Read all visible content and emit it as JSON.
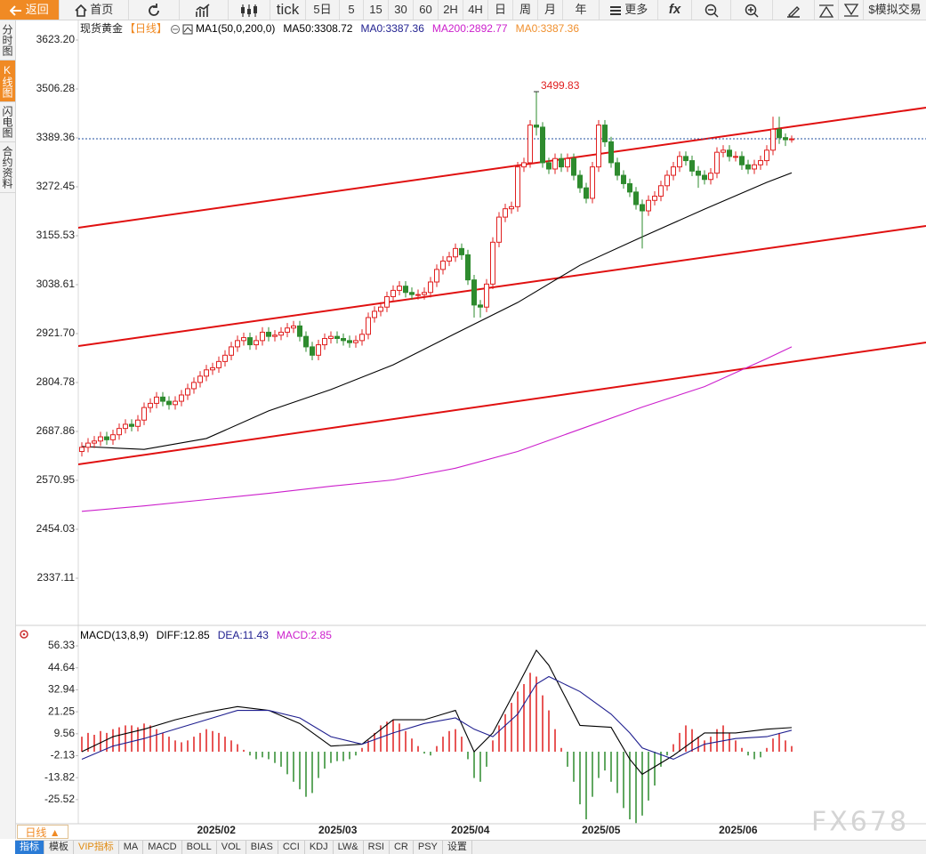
{
  "toolbar": {
    "back": "返回",
    "home": "首页",
    "periods": [
      "tick",
      "5日",
      "5",
      "15",
      "30",
      "60",
      "2H",
      "4H",
      "日",
      "周",
      "月",
      "年"
    ],
    "more": "更多",
    "formula": "fx",
    "trade": "$模拟交易"
  },
  "sidebar": [
    "分时图",
    "K线图",
    "闪电图",
    "合约资料"
  ],
  "chart_data": [
    {
      "type": "candlestick",
      "title": "现货黄金",
      "period": "【日线】",
      "legend": [
        {
          "text": "MA1(50,0,200,0)",
          "color": "#000000"
        },
        {
          "text": "MA50:3308.72",
          "color": "#000000"
        },
        {
          "text": "MA0:3387.36",
          "color": "#1f1f8f"
        },
        {
          "text": "MA200:2892.77",
          "color": "#cc1fcc"
        },
        {
          "text": "MA0:3387.36",
          "color": "#f0902e"
        }
      ],
      "open": [
        2640,
        2650,
        2660,
        2665,
        2675,
        2668,
        2680,
        2695,
        2705,
        2700,
        2715,
        2745,
        2755,
        2770,
        2760,
        2752,
        2760,
        2775,
        2790,
        2805,
        2820,
        2835,
        2840,
        2855,
        2870,
        2890,
        2905,
        2912,
        2895,
        2905,
        2925,
        2915,
        2918,
        2925,
        2935,
        2940,
        2915,
        2890,
        2870,
        2895,
        2910,
        2915,
        2910,
        2905,
        2900,
        2905,
        2920,
        2960,
        2975,
        2985,
        3010,
        3025,
        3035,
        3020,
        3015,
        3015,
        3020,
        3045,
        3075,
        3095,
        3105,
        3125,
        3110,
        3050,
        2990,
        2985,
        3040,
        3140,
        3200,
        3220,
        3225,
        3320,
        3330,
        3420,
        3415,
        3330,
        3315,
        3340,
        3320,
        3340,
        3300,
        3270,
        3245,
        3320,
        3420,
        3380,
        3330,
        3300,
        3280,
        3260,
        3230,
        3215,
        3240,
        3250,
        3275,
        3300,
        3320,
        3345,
        3335,
        3310,
        3300,
        3290,
        3305,
        3355,
        3360,
        3345,
        3345,
        3325,
        3315,
        3325,
        3335,
        3360,
        3410,
        3390,
        3385
      ],
      "high": [
        2662,
        2672,
        2677,
        2687,
        2687,
        2692,
        2707,
        2717,
        2717,
        2727,
        2757,
        2767,
        2782,
        2782,
        2772,
        2772,
        2787,
        2802,
        2817,
        2832,
        2847,
        2852,
        2867,
        2882,
        2902,
        2917,
        2924,
        2924,
        2917,
        2937,
        2937,
        2930,
        2937,
        2947,
        2952,
        2952,
        2927,
        2902,
        2907,
        2922,
        2927,
        2927,
        2922,
        2917,
        2917,
        2932,
        2972,
        2987,
        2997,
        3022,
        3037,
        3047,
        3047,
        3032,
        3027,
        3032,
        3057,
        3087,
        3107,
        3117,
        3137,
        3137,
        3122,
        3062,
        3002,
        3052,
        3152,
        3212,
        3232,
        3237,
        3332,
        3342,
        3432,
        3499.83,
        3427,
        3342,
        3352,
        3352,
        3352,
        3352,
        3312,
        3282,
        3332,
        3432,
        3432,
        3392,
        3342,
        3312,
        3292,
        3272,
        3242,
        3252,
        3262,
        3287,
        3312,
        3332,
        3357,
        3357,
        3347,
        3322,
        3312,
        3317,
        3367,
        3372,
        3372,
        3357,
        3357,
        3337,
        3337,
        3347,
        3372,
        3440,
        3440,
        3400,
        3395
      ],
      "low": [
        2628,
        2638,
        2648,
        2653,
        2656,
        2656,
        2668,
        2683,
        2688,
        2688,
        2703,
        2733,
        2743,
        2748,
        2740,
        2740,
        2748,
        2763,
        2778,
        2793,
        2808,
        2823,
        2828,
        2843,
        2858,
        2878,
        2893,
        2883,
        2883,
        2893,
        2903,
        2903,
        2906,
        2913,
        2923,
        2903,
        2878,
        2858,
        2858,
        2883,
        2898,
        2898,
        2893,
        2888,
        2888,
        2893,
        2908,
        2948,
        2963,
        2973,
        2998,
        3013,
        3008,
        3003,
        3003,
        3003,
        3008,
        3033,
        3063,
        3083,
        3093,
        3098,
        3038,
        2960,
        2960,
        2973,
        3028,
        3128,
        3188,
        3208,
        3213,
        3308,
        3318,
        3395,
        3318,
        3303,
        3303,
        3308,
        3308,
        3288,
        3258,
        3233,
        3233,
        3308,
        3368,
        3318,
        3288,
        3268,
        3248,
        3218,
        3125,
        3203,
        3228,
        3238,
        3263,
        3288,
        3308,
        3323,
        3298,
        3270,
        3278,
        3278,
        3293,
        3343,
        3333,
        3333,
        3313,
        3303,
        3303,
        3313,
        3323,
        3348,
        3375,
        3370,
        3378
      ],
      "close": [
        2650,
        2660,
        2665,
        2675,
        2668,
        2680,
        2695,
        2705,
        2700,
        2715,
        2745,
        2755,
        2770,
        2760,
        2752,
        2760,
        2775,
        2790,
        2805,
        2820,
        2835,
        2840,
        2855,
        2870,
        2890,
        2905,
        2912,
        2895,
        2905,
        2925,
        2915,
        2918,
        2925,
        2935,
        2940,
        2915,
        2890,
        2870,
        2895,
        2910,
        2915,
        2910,
        2905,
        2900,
        2905,
        2920,
        2960,
        2975,
        2985,
        3010,
        3025,
        3035,
        3020,
        3015,
        3015,
        3020,
        3045,
        3075,
        3095,
        3105,
        3125,
        3110,
        3050,
        2990,
        2985,
        3040,
        3140,
        3200,
        3220,
        3225,
        3320,
        3330,
        3420,
        3415,
        3330,
        3315,
        3340,
        3320,
        3340,
        3300,
        3270,
        3245,
        3320,
        3420,
        3380,
        3330,
        3300,
        3280,
        3260,
        3230,
        3215,
        3240,
        3250,
        3275,
        3300,
        3320,
        3345,
        3335,
        3310,
        3300,
        3290,
        3305,
        3355,
        3360,
        3345,
        3345,
        3325,
        3315,
        3325,
        3335,
        3360,
        3410,
        3390,
        3385,
        3387
      ],
      "up_color": "#e02020",
      "down_color": "#2e8b2e",
      "series": [
        {
          "color": "#000000",
          "x": [
            0,
            10,
            20,
            30,
            40,
            50,
            60,
            70,
            80,
            90,
            100,
            110,
            114
          ],
          "values": [
            2652,
            2645,
            2671,
            2737,
            2788,
            2847,
            2922,
            2996,
            3085,
            3153,
            3219,
            3283,
            3306
          ]
        },
        {
          "color": "#cc1fcc",
          "x": [
            0,
            10,
            20,
            30,
            40,
            50,
            60,
            70,
            80,
            90,
            100,
            110,
            114
          ],
          "values": [
            2497,
            2510,
            2525,
            2540,
            2557,
            2572,
            2600,
            2640,
            2693,
            2746,
            2795,
            2862,
            2890
          ]
        }
      ],
      "price_line": {
        "value": 3387.36,
        "color": "#1f4f9f"
      },
      "trendlines": [
        {
          "color": "#e01010",
          "x": [
            -0.57,
            135.57
          ],
          "values": [
            3174.7,
            3461.6
          ]
        },
        {
          "color": "#e01010",
          "x": [
            -0.57,
            135.57
          ],
          "values": [
            2891.9,
            3179.0
          ]
        },
        {
          "color": "#e01010",
          "x": [
            -0.57,
            135.57
          ],
          "values": [
            2609.2,
            2900.4
          ]
        }
      ],
      "xlim": [
        -0.57,
        135.57
      ],
      "xticks": [
        {
          "value": 21.6,
          "label": "2025/02"
        },
        {
          "value": 41.1,
          "label": "2025/03"
        },
        {
          "value": 62.4,
          "label": "2025/04"
        },
        {
          "value": 83.4,
          "label": "2025/05"
        },
        {
          "value": 105.4,
          "label": "2025/06"
        }
      ],
      "ylim": [
        2230.82,
        3667.84
      ],
      "yticks": [
        {
          "value": 3623.2,
          "label": "3623.20"
        },
        3506.28,
        3389.36,
        3272.45,
        3155.53,
        3038.61,
        {
          "value": 2921.7,
          "label": "2921.70"
        },
        2804.78,
        2687.86,
        2570.95,
        2454.03,
        2337.11
      ]
    },
    {
      "type": "macd",
      "legend": [
        {
          "text": "MACD(13,8,9)",
          "color": "#000000"
        },
        {
          "text": "DIFF:12.85",
          "color": "#000000"
        },
        {
          "text": "DEA:11.43",
          "color": "#1f1f8f"
        },
        {
          "text": "MACD:2.85",
          "color": "#cc1fcc"
        }
      ],
      "values": [
        8,
        10,
        9,
        11,
        10,
        12,
        13,
        14,
        14,
        13,
        15,
        14,
        12,
        10,
        8,
        6,
        5,
        6,
        8,
        10,
        12,
        11,
        10,
        8,
        6,
        4,
        1,
        -2,
        -4,
        -3,
        -4,
        -6,
        -8,
        -12,
        -16,
        -20,
        -24,
        -22,
        -14,
        -9,
        -6,
        -5,
        -5,
        -4,
        -2,
        2,
        6,
        10,
        14,
        16,
        17,
        15,
        11,
        7,
        3,
        -1,
        -2,
        3,
        8,
        11,
        12,
        8,
        -4,
        -14,
        -16,
        -8,
        6,
        14,
        20,
        26,
        32,
        36,
        42,
        40,
        30,
        22,
        12,
        2,
        -8,
        -16,
        -28,
        -36,
        -24,
        -14,
        -10,
        -16,
        -22,
        -30,
        -36,
        -38,
        -34,
        -26,
        -18,
        -8,
        -2,
        4,
        10,
        14,
        12,
        8,
        6,
        8,
        12,
        14,
        10,
        6,
        2,
        -2,
        -4,
        -3,
        2,
        7,
        10,
        6,
        3
      ],
      "up_color": "#e02020",
      "down_color": "#2e8b2e",
      "series": [
        {
          "color": "#000000",
          "x": [
            0,
            5,
            10,
            15,
            20,
            25,
            30,
            35,
            40,
            45,
            50,
            55,
            60,
            63,
            66,
            70,
            73,
            75,
            80,
            85,
            88,
            90,
            95,
            100,
            105,
            110,
            114
          ],
          "values": [
            0,
            8,
            12,
            17,
            21,
            24,
            22,
            15,
            3,
            4,
            17,
            17,
            22,
            0,
            10,
            35,
            54,
            46,
            14,
            13,
            -4,
            -12,
            -2,
            10,
            10,
            12,
            12.85
          ]
        },
        {
          "color": "#1f1f8f",
          "x": [
            0,
            5,
            10,
            15,
            20,
            25,
            30,
            35,
            40,
            45,
            50,
            55,
            60,
            63,
            66,
            70,
            73,
            75,
            80,
            85,
            88,
            90,
            95,
            100,
            105,
            110,
            114
          ],
          "values": [
            -4,
            3,
            7,
            12,
            17,
            22,
            22,
            18,
            8,
            4,
            10,
            15,
            18,
            12,
            8,
            20,
            36,
            40,
            32,
            20,
            10,
            2,
            -4,
            4,
            7,
            8,
            11.43
          ]
        }
      ],
      "xlim": [
        -0.57,
        135.57
      ],
      "ylim": [
        -37.88,
        62.98
      ],
      "yticks": [
        56.33,
        44.64,
        32.94,
        21.25,
        9.56,
        -2.13,
        -13.82,
        -25.52
      ]
    }
  ],
  "footer": {
    "period": "日线 ▲",
    "tabs": [
      "指标",
      "模板",
      "VIP指标",
      "MA",
      "MACD",
      "BOLL",
      "VOL",
      "BIAS",
      "CCI",
      "KDJ",
      "LW&",
      "RSI",
      "CR",
      "PSY",
      "设置"
    ]
  },
  "watermark": "FX678"
}
